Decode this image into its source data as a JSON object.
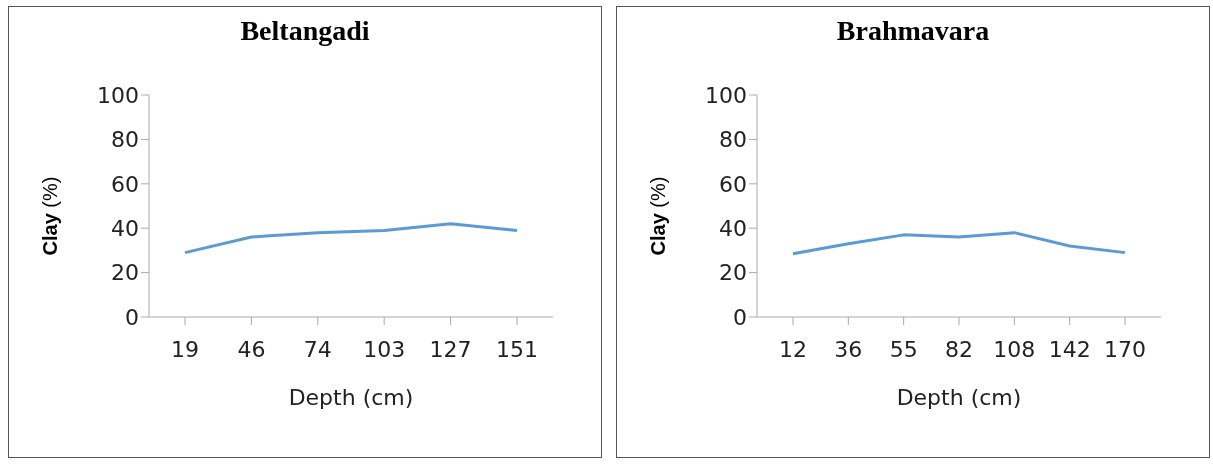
{
  "chart_data": [
    {
      "type": "line",
      "title": "Beltangadi",
      "xlabel": "Depth (cm)",
      "ylabel": "Clay (%)",
      "categories": [
        "19",
        "46",
        "74",
        "103",
        "127",
        "151"
      ],
      "series": [
        {
          "color": "#5b9bd5",
          "values": [
            29,
            36,
            38,
            39,
            42,
            39
          ]
        }
      ],
      "ylim": [
        0,
        100
      ],
      "yticks": [
        0,
        20,
        40,
        60,
        80,
        100
      ],
      "grid": false,
      "legend": false,
      "marker": "none",
      "line_style": "solid"
    },
    {
      "type": "line",
      "title": "Brahmavara",
      "xlabel": "Depth (cm)",
      "ylabel": "Clay (%)",
      "categories": [
        "12",
        "36",
        "55",
        "82",
        "108",
        "142",
        "170"
      ],
      "series": [
        {
          "color": "#5b9bd5",
          "values": [
            28.5,
            33,
            37,
            36,
            38,
            32,
            29
          ]
        }
      ],
      "ylim": [
        0,
        100
      ],
      "yticks": [
        0,
        20,
        40,
        60,
        80,
        100
      ],
      "grid": false,
      "legend": false,
      "marker": "none",
      "line_style": "solid"
    }
  ]
}
